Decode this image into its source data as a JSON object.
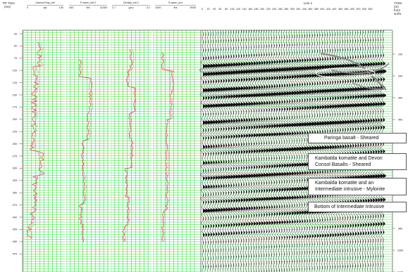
{
  "header": {
    "time_label": [
      "PP Time",
      "(ms)"
    ],
    "right_label": [
      "TVDs",
      "(m)",
      "from",
      "surfa"
    ],
    "section_title": "Line 1"
  },
  "tracks": [
    {
      "name": "Gamma Ray_edt",
      "min": "0",
      "unit": "api",
      "max": "140"
    },
    {
      "name": "P-wave_edt 2",
      "min": "400",
      "unit": "ft/s",
      "max": "11000"
    },
    {
      "name": "Density_edt 2",
      "min": "2.7",
      "unit": "g/cc",
      "max": "3.1"
    },
    {
      "name": "S-wave_corr",
      "min": "1400",
      "unit": "ft/s",
      "max": "5000"
    }
  ],
  "time_ticks": [
    "25",
    "50",
    "75",
    "100",
    "125",
    "150",
    "175",
    "200",
    "225",
    "250",
    "275",
    "300",
    "325",
    "350",
    "375",
    "400",
    "425",
    "450",
    "475"
  ],
  "trace_ticks": [
    "0",
    "20",
    "40",
    "60",
    "80",
    "100",
    "120",
    "140",
    "160",
    "180",
    "200",
    "220",
    "240",
    "260",
    "280",
    "300",
    "320",
    "340",
    "360",
    "380",
    "400",
    "420",
    "440",
    "460",
    "480",
    "500",
    "520",
    "540",
    "560"
  ],
  "depth_ticks": [
    "100",
    "200",
    "300",
    "400",
    "500",
    "600",
    "700",
    "800",
    "900",
    "1000",
    "1100"
  ],
  "annotations": [
    {
      "lines": [
        "Paringa basalt - Sheared"
      ]
    },
    {
      "lines": [
        "Kambalda komatite and Devon",
        "Consol Basalts - Sheared"
      ]
    },
    {
      "lines": [
        "Kambalda komatite and an",
        "Intermediate intrusive - Mylonite"
      ]
    },
    {
      "lines": [
        "Bottom of Intermediate Intrusive"
      ]
    }
  ],
  "colors": {
    "grid": "#2fd22f",
    "curve_primary": "#d94a3a",
    "curve_secondary": "#8a8a8a",
    "wiggle": "#111111",
    "highlight": "#8a8a8a"
  }
}
